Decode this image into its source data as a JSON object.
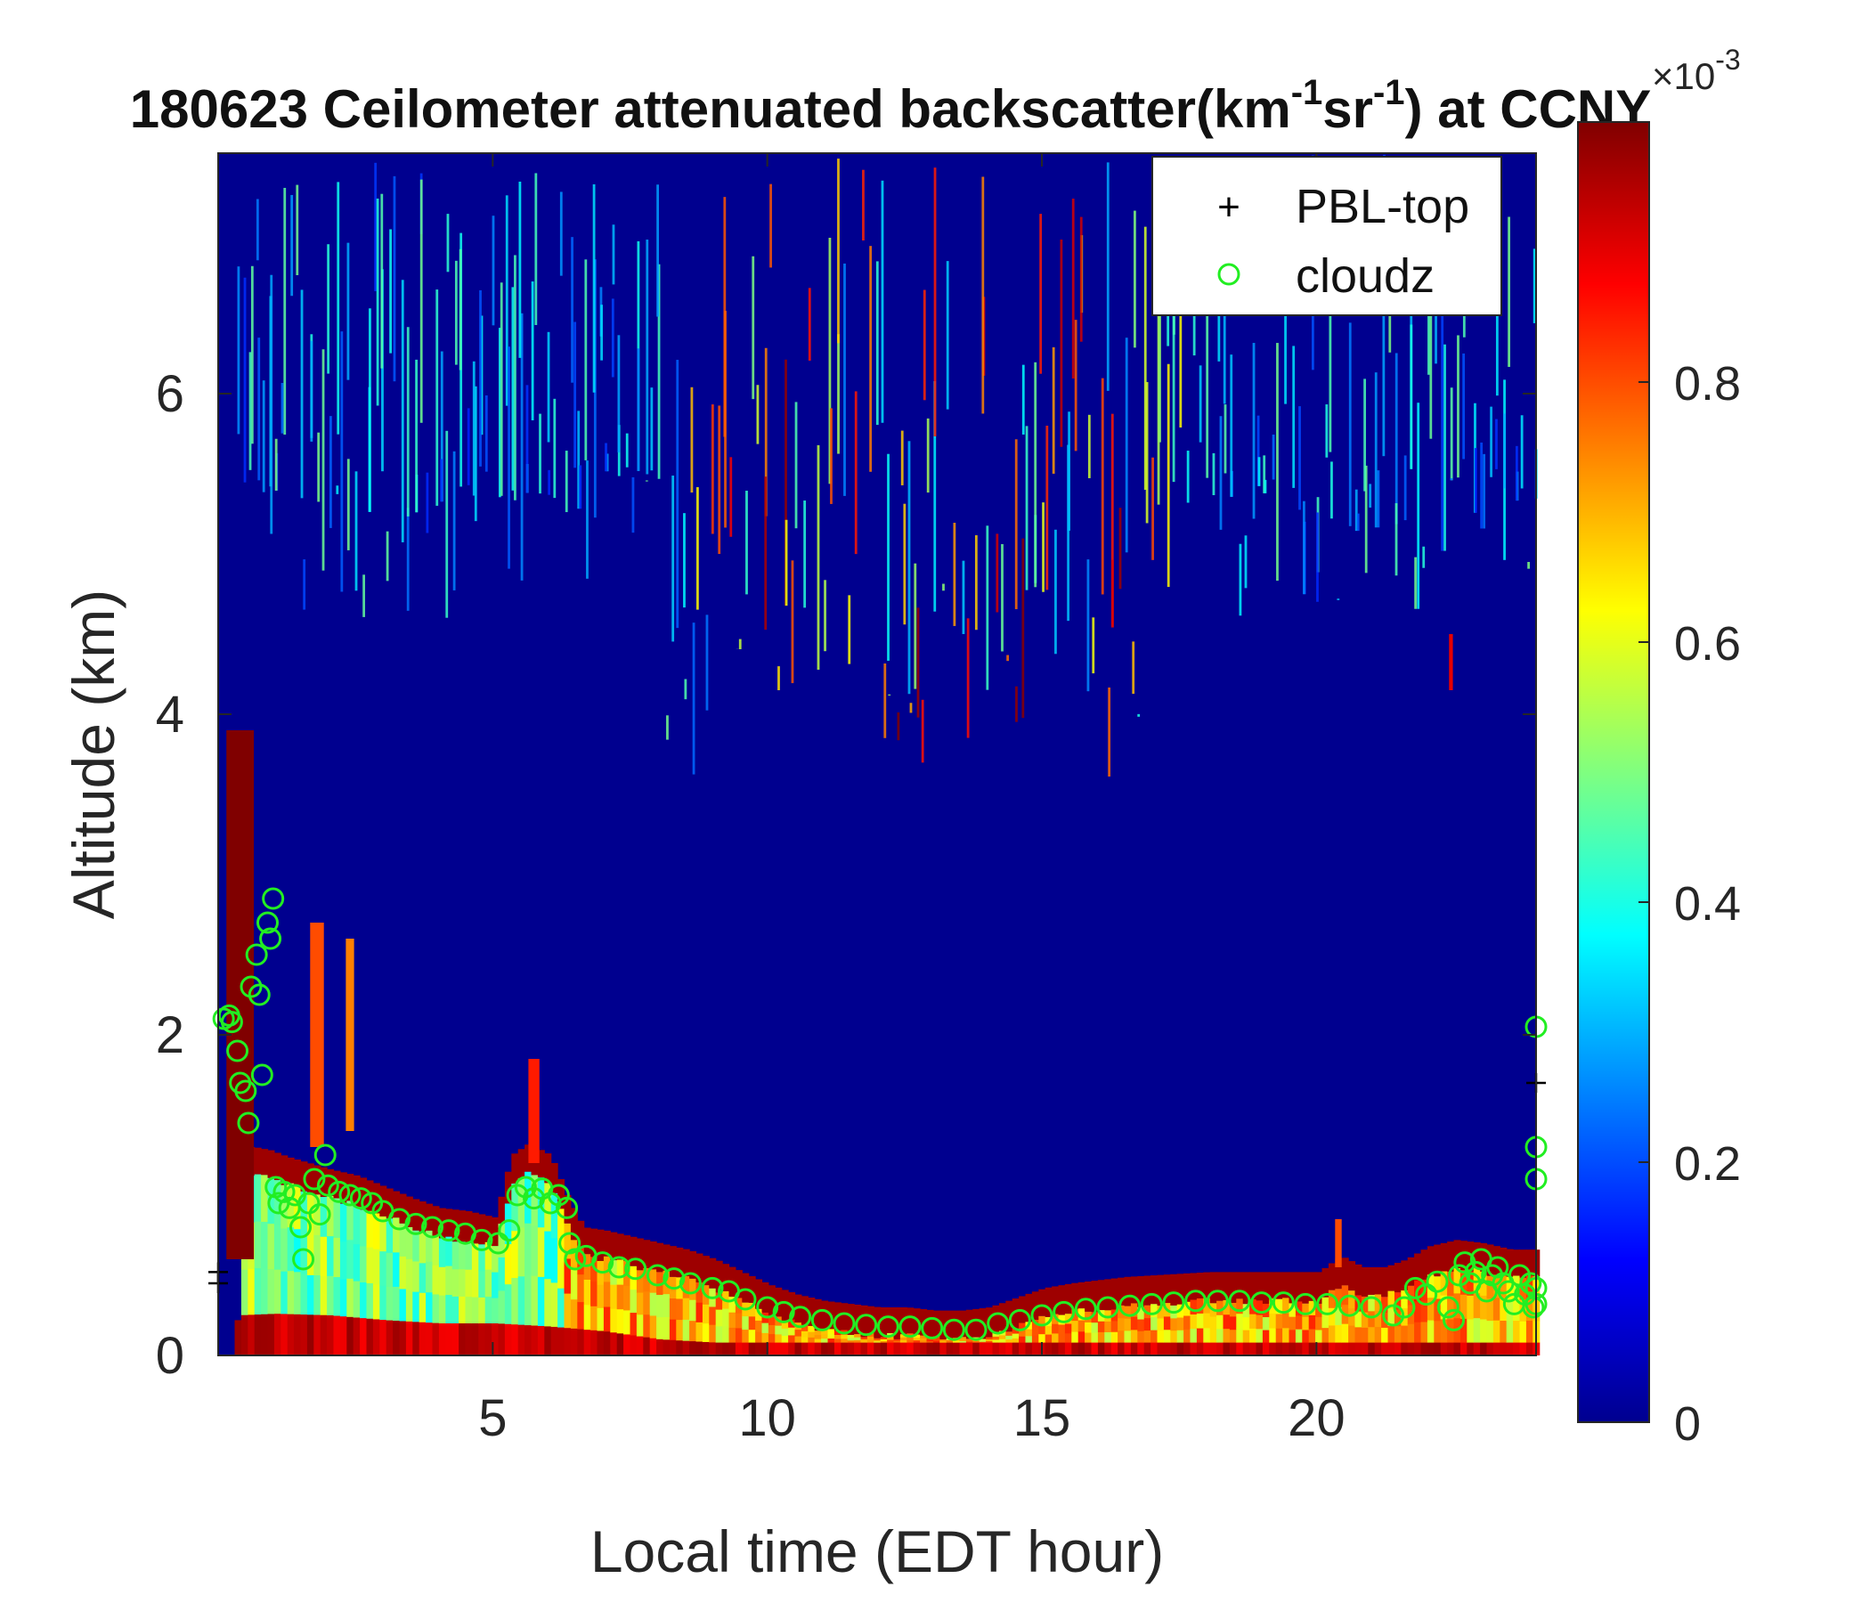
{
  "chart_data": {
    "type": "heatmap",
    "title": {
      "prefix": "180623 Ceilometer attenuated backscatter(km",
      "sup1": "-1",
      "mid": "sr",
      "sup2": "-1",
      "suffix": ") at CCNY"
    },
    "xlabel": "Local time (EDT hour)",
    "ylabel": "Altitude (km)",
    "xlim": [
      0,
      24
    ],
    "ylim": [
      0,
      7.5
    ],
    "xticks": [
      5,
      10,
      15,
      20
    ],
    "yticks": [
      0,
      2,
      4,
      6
    ],
    "colorbar": {
      "colormap": "jet",
      "clim": [
        0,
        0.001
      ],
      "ticks": [
        0,
        0.2,
        0.4,
        0.6,
        0.8
      ],
      "multiplier": {
        "base": "×10",
        "exponent": "-3"
      }
    },
    "legend": {
      "placement": "top-right",
      "entries": [
        {
          "label": "PBL-top",
          "marker": "+",
          "color": "#000000"
        },
        {
          "label": "cloudz",
          "marker": "o",
          "color": "#22ee22"
        }
      ]
    },
    "layers": {
      "pbl_top_km": [
        [
          0.3,
          1.3
        ],
        [
          0.6,
          1.3
        ],
        [
          0.9,
          1.28
        ],
        [
          1.2,
          1.24
        ],
        [
          1.6,
          1.2
        ],
        [
          2.0,
          1.16
        ],
        [
          2.5,
          1.12
        ],
        [
          3.0,
          1.05
        ],
        [
          3.5,
          0.98
        ],
        [
          4.0,
          0.92
        ],
        [
          4.5,
          0.9
        ],
        [
          5.0,
          0.86
        ],
        [
          5.3,
          1.25
        ],
        [
          5.6,
          1.32
        ],
        [
          6.0,
          1.25
        ],
        [
          6.3,
          1.0
        ],
        [
          6.6,
          0.8
        ],
        [
          7.0,
          0.78
        ],
        [
          7.5,
          0.74
        ],
        [
          8.0,
          0.7
        ],
        [
          8.5,
          0.66
        ],
        [
          9.0,
          0.6
        ],
        [
          9.5,
          0.52
        ],
        [
          10.0,
          0.44
        ],
        [
          10.5,
          0.38
        ],
        [
          11.0,
          0.34
        ],
        [
          11.5,
          0.32
        ],
        [
          12.0,
          0.3
        ],
        [
          12.5,
          0.3
        ],
        [
          13.0,
          0.28
        ],
        [
          13.5,
          0.28
        ],
        [
          14.0,
          0.3
        ],
        [
          14.5,
          0.36
        ],
        [
          15.0,
          0.42
        ],
        [
          15.5,
          0.45
        ],
        [
          16.0,
          0.47
        ],
        [
          16.5,
          0.49
        ],
        [
          17.0,
          0.5
        ],
        [
          17.5,
          0.51
        ],
        [
          18.0,
          0.52
        ],
        [
          18.5,
          0.52
        ],
        [
          19.0,
          0.52
        ],
        [
          19.5,
          0.52
        ],
        [
          20.0,
          0.52
        ],
        [
          20.4,
          0.62
        ],
        [
          20.8,
          0.55
        ],
        [
          21.2,
          0.55
        ],
        [
          21.6,
          0.6
        ],
        [
          22.0,
          0.68
        ],
        [
          22.5,
          0.72
        ],
        [
          23.0,
          0.7
        ],
        [
          23.5,
          0.66
        ],
        [
          24.0,
          0.66
        ]
      ],
      "strong_bottom_km": [
        [
          0.3,
          0.25
        ],
        [
          1.0,
          0.26
        ],
        [
          2.0,
          0.25
        ],
        [
          3.0,
          0.22
        ],
        [
          4.0,
          0.2
        ],
        [
          5.0,
          0.2
        ],
        [
          6.0,
          0.18
        ],
        [
          7.0,
          0.15
        ],
        [
          8.0,
          0.1
        ],
        [
          9.0,
          0.08
        ],
        [
          24.0,
          0.08
        ]
      ],
      "aerosol_top_km": [
        [
          0.3,
          0.22
        ],
        [
          1.0,
          0.45
        ],
        [
          1.5,
          0.6
        ],
        [
          2.5,
          0.65
        ],
        [
          3.5,
          0.58
        ],
        [
          4.5,
          0.55
        ],
        [
          5.2,
          0.65
        ],
        [
          6.0,
          0.55
        ],
        [
          7.0,
          0.3
        ],
        [
          8.0,
          0.22
        ],
        [
          8.8,
          0.15
        ],
        [
          9.5,
          0.1
        ],
        [
          24.0,
          0.1
        ]
      ]
    },
    "events": [
      {
        "t": 0.4,
        "z0": 0.6,
        "z1": 3.9,
        "width_h": 0.5,
        "level": 1.0
      },
      {
        "t": 1.8,
        "z0": 1.3,
        "z1": 2.7,
        "width_h": 0.25,
        "level": 0.8
      },
      {
        "t": 2.4,
        "z0": 1.4,
        "z1": 2.6,
        "width_h": 0.15,
        "level": 0.75
      },
      {
        "t": 5.75,
        "z0": 1.2,
        "z1": 1.85,
        "width_h": 0.2,
        "level": 0.85
      },
      {
        "t": 20.4,
        "z0": 0.55,
        "z1": 0.85,
        "width_h": 0.12,
        "level": 0.8
      },
      {
        "t": 22.45,
        "z0": 4.15,
        "z1": 4.5,
        "width_h": 0.07,
        "level": 0.9
      }
    ],
    "cloudz": [
      [
        0.1,
        2.1
      ],
      [
        0.2,
        2.12
      ],
      [
        0.25,
        2.08
      ],
      [
        0.35,
        1.9
      ],
      [
        0.4,
        1.7
      ],
      [
        0.5,
        1.65
      ],
      [
        0.55,
        1.45
      ],
      [
        0.6,
        2.3
      ],
      [
        0.7,
        2.5
      ],
      [
        0.75,
        2.25
      ],
      [
        0.8,
        1.75
      ],
      [
        0.9,
        2.7
      ],
      [
        0.95,
        2.6
      ],
      [
        1.0,
        2.85
      ],
      [
        1.05,
        1.05
      ],
      [
        1.1,
        0.95
      ],
      [
        1.2,
        1.02
      ],
      [
        1.3,
        0.92
      ],
      [
        1.4,
        1.0
      ],
      [
        1.5,
        0.8
      ],
      [
        1.55,
        0.6
      ],
      [
        1.65,
        0.95
      ],
      [
        1.75,
        1.1
      ],
      [
        1.85,
        0.88
      ],
      [
        1.95,
        1.25
      ],
      [
        2.0,
        1.06
      ],
      [
        2.2,
        1.02
      ],
      [
        2.4,
        1.0
      ],
      [
        2.6,
        0.98
      ],
      [
        2.8,
        0.95
      ],
      [
        3.0,
        0.9
      ],
      [
        3.3,
        0.85
      ],
      [
        3.6,
        0.82
      ],
      [
        3.9,
        0.8
      ],
      [
        4.2,
        0.78
      ],
      [
        4.5,
        0.76
      ],
      [
        4.8,
        0.72
      ],
      [
        5.1,
        0.7
      ],
      [
        5.3,
        0.78
      ],
      [
        5.45,
        1.0
      ],
      [
        5.6,
        1.05
      ],
      [
        5.75,
        0.98
      ],
      [
        5.9,
        1.04
      ],
      [
        6.05,
        0.95
      ],
      [
        6.2,
        1.0
      ],
      [
        6.35,
        0.92
      ],
      [
        6.4,
        0.7
      ],
      [
        6.5,
        0.6
      ],
      [
        6.7,
        0.62
      ],
      [
        7.0,
        0.58
      ],
      [
        7.3,
        0.55
      ],
      [
        7.6,
        0.54
      ],
      [
        8.0,
        0.5
      ],
      [
        8.3,
        0.48
      ],
      [
        8.6,
        0.45
      ],
      [
        9.0,
        0.42
      ],
      [
        9.3,
        0.4
      ],
      [
        9.6,
        0.35
      ],
      [
        10.0,
        0.3
      ],
      [
        10.3,
        0.27
      ],
      [
        10.6,
        0.24
      ],
      [
        11.0,
        0.22
      ],
      [
        11.4,
        0.2
      ],
      [
        11.8,
        0.19
      ],
      [
        12.2,
        0.18
      ],
      [
        12.6,
        0.18
      ],
      [
        13.0,
        0.17
      ],
      [
        13.4,
        0.16
      ],
      [
        13.8,
        0.16
      ],
      [
        14.2,
        0.2
      ],
      [
        14.6,
        0.22
      ],
      [
        15.0,
        0.25
      ],
      [
        15.4,
        0.27
      ],
      [
        15.8,
        0.29
      ],
      [
        16.2,
        0.3
      ],
      [
        16.6,
        0.31
      ],
      [
        17.0,
        0.32
      ],
      [
        17.4,
        0.33
      ],
      [
        17.8,
        0.34
      ],
      [
        18.2,
        0.34
      ],
      [
        18.6,
        0.34
      ],
      [
        19.0,
        0.33
      ],
      [
        19.4,
        0.33
      ],
      [
        19.8,
        0.32
      ],
      [
        20.2,
        0.32
      ],
      [
        20.6,
        0.31
      ],
      [
        21.0,
        0.3
      ],
      [
        21.4,
        0.25
      ],
      [
        21.6,
        0.3
      ],
      [
        21.8,
        0.42
      ],
      [
        22.0,
        0.38
      ],
      [
        22.2,
        0.46
      ],
      [
        22.4,
        0.3
      ],
      [
        22.5,
        0.22
      ],
      [
        22.6,
        0.5
      ],
      [
        22.7,
        0.58
      ],
      [
        22.8,
        0.45
      ],
      [
        22.9,
        0.52
      ],
      [
        23.0,
        0.6
      ],
      [
        23.1,
        0.4
      ],
      [
        23.2,
        0.5
      ],
      [
        23.3,
        0.55
      ],
      [
        23.4,
        0.45
      ],
      [
        23.5,
        0.4
      ],
      [
        23.6,
        0.32
      ],
      [
        23.7,
        0.5
      ],
      [
        23.8,
        0.38
      ],
      [
        23.9,
        0.45
      ],
      [
        23.95,
        0.3
      ],
      [
        24.0,
        2.05
      ],
      [
        24.0,
        1.3
      ],
      [
        24.0,
        1.1
      ],
      [
        24.0,
        0.42
      ],
      [
        24.0,
        0.32
      ]
    ],
    "pbl_top": [
      [
        24.0,
        1.7
      ],
      [
        0.0,
        0.45
      ],
      [
        0.0,
        0.52
      ]
    ]
  }
}
